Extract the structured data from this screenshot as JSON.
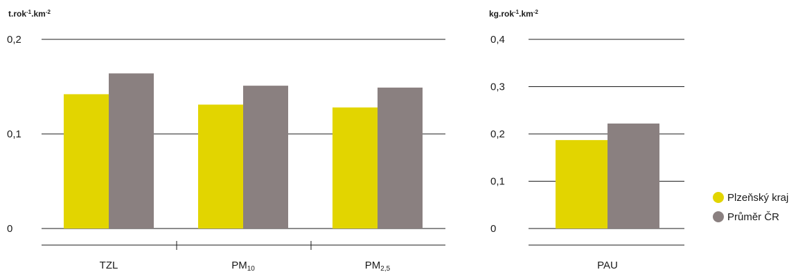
{
  "chart_data": [
    {
      "type": "bar",
      "unit_label": {
        "base": "t.rok",
        "sup1": "-1",
        "mid": ".km",
        "sup2": "-2"
      },
      "y_ticks": [
        {
          "value": 0,
          "label": "0"
        },
        {
          "value": 0.1,
          "label": "0,1"
        },
        {
          "value": 0.2,
          "label": "0,2"
        }
      ],
      "ylim": [
        0,
        0.2
      ],
      "grid": true,
      "categories": [
        {
          "base": "TZL",
          "sub": ""
        },
        {
          "base": "PM",
          "sub": "10"
        },
        {
          "base": "PM",
          "sub": "2,5"
        }
      ],
      "series": [
        {
          "name": "Plzeňský kraj",
          "values": [
            0.142,
            0.131,
            0.128
          ]
        },
        {
          "name": "Průměr ČR",
          "values": [
            0.164,
            0.151,
            0.149
          ]
        }
      ]
    },
    {
      "type": "bar",
      "unit_label": {
        "base": "kg.rok",
        "sup1": "-1",
        "mid": ".km",
        "sup2": "-2"
      },
      "y_ticks": [
        {
          "value": 0,
          "label": "0"
        },
        {
          "value": 0.1,
          "label": "0,1"
        },
        {
          "value": 0.2,
          "label": "0,2"
        },
        {
          "value": 0.3,
          "label": "0,3"
        },
        {
          "value": 0.4,
          "label": "0,4"
        }
      ],
      "ylim": [
        0,
        0.4
      ],
      "grid": true,
      "categories": [
        {
          "base": "PAU",
          "sub": ""
        }
      ],
      "series": [
        {
          "name": "Plzeňský kraj",
          "values": [
            0.187
          ]
        },
        {
          "name": "Průměr ČR",
          "values": [
            0.222
          ]
        }
      ]
    }
  ],
  "legend": {
    "placement": "right",
    "items": [
      {
        "label": "Plzeňský kraj",
        "color": "#e2d500"
      },
      {
        "label": "Průměr ČR",
        "color": "#8a8080"
      }
    ]
  },
  "colors": {
    "series": [
      "#e2d500",
      "#8a8080"
    ],
    "grid": "#1a1a1a",
    "text": "#1a1a1a"
  }
}
